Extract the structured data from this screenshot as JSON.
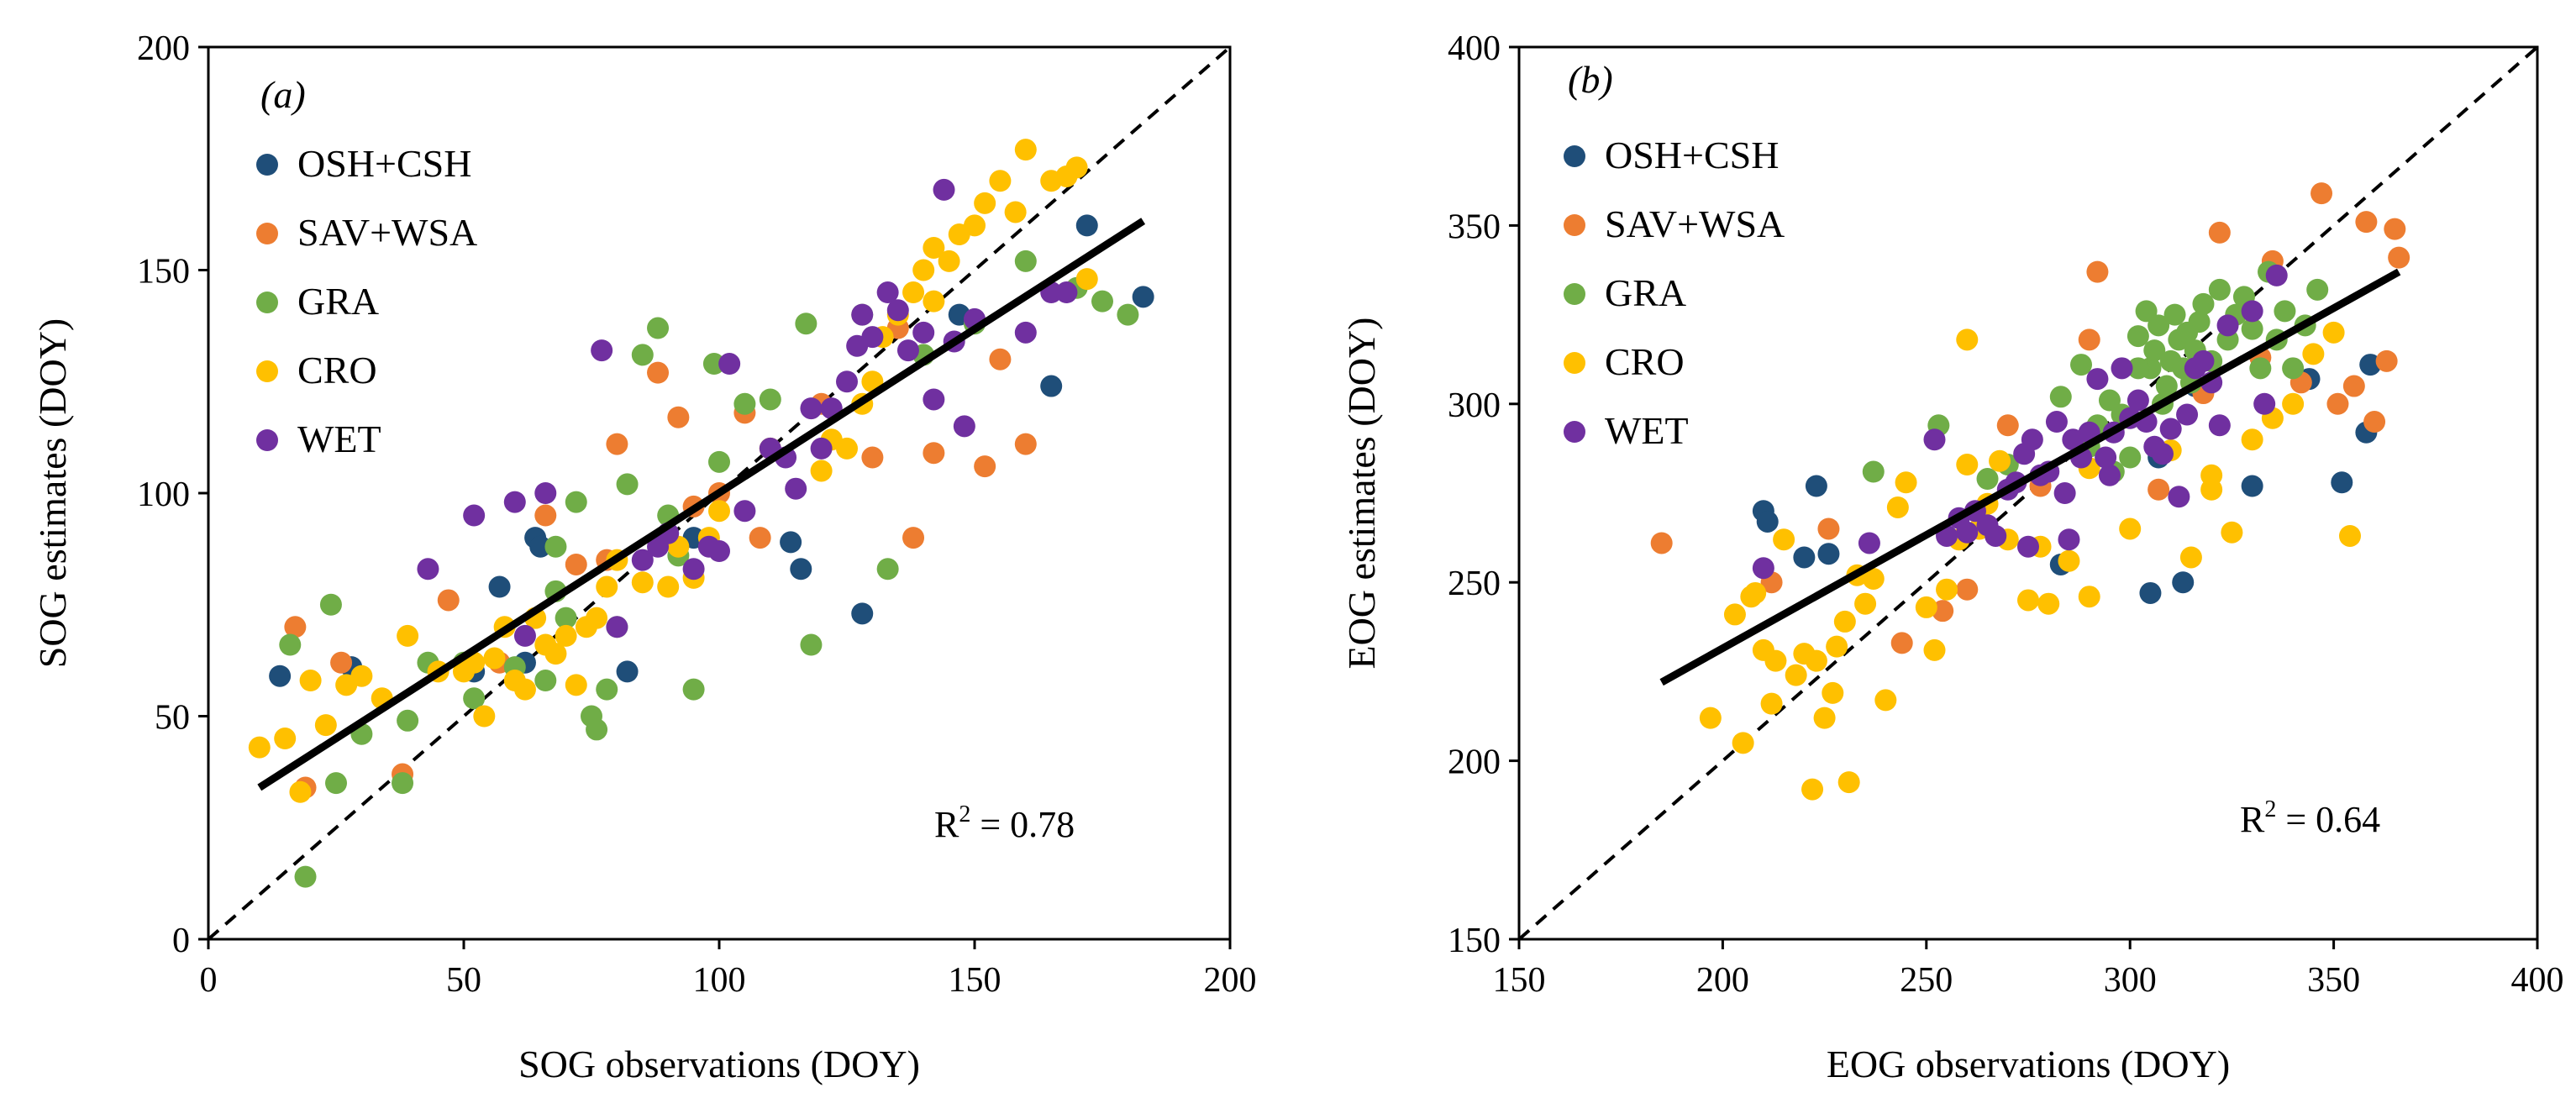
{
  "colors": {
    "OSH+CSH": "#1f4e79",
    "SAV+WSA": "#ed7d31",
    "GRA": "#70ad47",
    "CRO": "#ffc000",
    "WET": "#7030a0"
  },
  "chart_data": [
    {
      "type": "scatter",
      "panel_label": "(a)",
      "paren_open": "(",
      "panel_letter": "a",
      "paren_close": ")",
      "xlabel": "SOG observations (DOY)",
      "ylabel": "SOG estimates (DOY)",
      "xlim": [
        0,
        200
      ],
      "ylim": [
        0,
        200
      ],
      "xticks": [
        "0",
        "50",
        "100",
        "150",
        "200"
      ],
      "yticks": [
        "0",
        "50",
        "100",
        "150",
        "200"
      ],
      "r2_label": "R",
      "r2_exp": "2",
      "r2_value": " = 0.78",
      "fit_line": {
        "x": [
          10,
          183
        ],
        "y": [
          34,
          161
        ]
      },
      "legend_entries": [
        "OSH+CSH",
        "SAV+WSA",
        "GRA",
        "CRO",
        "WET"
      ],
      "series": [
        {
          "name": "OSH+CSH",
          "x": [
            14,
            28,
            57,
            64,
            65,
            82,
            95,
            114,
            116,
            128,
            165,
            172,
            183,
            147,
            62,
            52
          ],
          "y": [
            59,
            61,
            79,
            90,
            88,
            60,
            90,
            89,
            83,
            73,
            124,
            160,
            144,
            140,
            62,
            60
          ]
        },
        {
          "name": "SAV+WSA",
          "x": [
            17,
            19,
            26,
            38,
            47,
            57,
            72,
            80,
            88,
            92,
            95,
            100,
            105,
            108,
            130,
            138,
            142,
            152,
            155,
            160,
            135,
            120,
            66,
            78
          ],
          "y": [
            70,
            34,
            62,
            37,
            76,
            62,
            84,
            111,
            127,
            117,
            97,
            100,
            118,
            90,
            108,
            90,
            109,
            106,
            130,
            111,
            137,
            120,
            95,
            85
          ]
        },
        {
          "name": "GRA",
          "x": [
            16,
            19,
            24,
            25,
            30,
            38,
            39,
            43,
            50,
            52,
            60,
            66,
            68,
            70,
            72,
            75,
            76,
            78,
            82,
            85,
            88,
            90,
            95,
            99,
            100,
            105,
            110,
            117,
            118,
            128,
            133,
            140,
            150,
            160,
            170,
            175,
            180,
            68,
            92,
            80
          ],
          "y": [
            66,
            14,
            75,
            35,
            46,
            35,
            49,
            62,
            62,
            54,
            61,
            58,
            88,
            72,
            98,
            50,
            47,
            56,
            102,
            131,
            137,
            95,
            56,
            129,
            107,
            120,
            121,
            138,
            66,
            140,
            83,
            131,
            138,
            152,
            146,
            143,
            140,
            78,
            86,
            70
          ]
        },
        {
          "name": "CRO",
          "x": [
            10,
            15,
            18,
            20,
            23,
            27,
            30,
            34,
            39,
            45,
            50,
            52,
            54,
            56,
            58,
            60,
            62,
            64,
            66,
            68,
            70,
            72,
            74,
            76,
            78,
            80,
            85,
            90,
            92,
            95,
            98,
            100,
            110,
            120,
            125,
            128,
            130,
            132,
            135,
            138,
            140,
            142,
            145,
            147,
            150,
            152,
            155,
            158,
            160,
            165,
            168,
            170,
            172,
            122,
            142
          ],
          "y": [
            43,
            45,
            33,
            58,
            48,
            57,
            59,
            54,
            68,
            60,
            60,
            62,
            50,
            63,
            70,
            58,
            56,
            72,
            66,
            64,
            68,
            57,
            70,
            72,
            79,
            85,
            80,
            79,
            88,
            81,
            90,
            96,
            110,
            105,
            110,
            120,
            125,
            135,
            140,
            145,
            150,
            155,
            152,
            158,
            160,
            165,
            170,
            163,
            177,
            170,
            171,
            173,
            148,
            112,
            143
          ]
        },
        {
          "name": "WET",
          "x": [
            43,
            52,
            60,
            62,
            66,
            77,
            80,
            85,
            88,
            90,
            95,
            98,
            100,
            102,
            105,
            110,
            115,
            120,
            122,
            125,
            127,
            128,
            130,
            133,
            135,
            137,
            140,
            142,
            144,
            146,
            148,
            150,
            160,
            165,
            168,
            113,
            118
          ],
          "y": [
            83,
            95,
            98,
            68,
            100,
            132,
            70,
            85,
            88,
            91,
            83,
            88,
            87,
            129,
            96,
            110,
            101,
            110,
            119,
            125,
            133,
            140,
            135,
            145,
            141,
            132,
            136,
            121,
            168,
            134,
            115,
            139,
            136,
            145,
            145,
            108,
            119
          ]
        }
      ]
    },
    {
      "type": "scatter",
      "panel_label": "(b)",
      "paren_open": "(",
      "panel_letter": "b",
      "paren_close": ")",
      "xlabel": "EOG observations (DOY)",
      "ylabel": "EOG estimates (DOY)",
      "xlim": [
        150,
        400
      ],
      "ylim": [
        150,
        400
      ],
      "xticks": [
        "150",
        "200",
        "250",
        "300",
        "350",
        "400"
      ],
      "yticks": [
        "150",
        "200",
        "250",
        "300",
        "350",
        "400"
      ],
      "r2_label": "R",
      "r2_exp": "2",
      "r2_value": " = 0.64",
      "fit_line": {
        "x": [
          185,
          366
        ],
        "y": [
          222,
          337
        ]
      },
      "legend_entries": [
        "OSH+CSH",
        "SAV+WSA",
        "GRA",
        "CRO",
        "WET"
      ],
      "series": [
        {
          "name": "OSH+CSH",
          "x": [
            210,
            211,
            220,
            223,
            226,
            283,
            305,
            307,
            313,
            316,
            330,
            344,
            352,
            358,
            359
          ],
          "y": [
            270,
            267,
            257,
            277,
            258,
            255,
            247,
            285,
            250,
            305,
            277,
            307,
            278,
            292,
            311
          ]
        },
        {
          "name": "SAV+WSA",
          "x": [
            185,
            212,
            226,
            244,
            254,
            260,
            278,
            292,
            307,
            322,
            332,
            342,
            347,
            351,
            355,
            358,
            360,
            363,
            366,
            365,
            335,
            318,
            270,
            290
          ],
          "y": [
            261,
            250,
            265,
            233,
            242,
            248,
            277,
            337,
            276,
            348,
            313,
            306,
            359,
            300,
            305,
            351,
            295,
            312,
            341,
            349,
            340,
            303,
            294,
            318
          ]
        },
        {
          "name": "GRA",
          "x": [
            237,
            253,
            265,
            270,
            283,
            288,
            292,
            295,
            298,
            300,
            302,
            304,
            305,
            306,
            307,
            308,
            309,
            310,
            311,
            312,
            313,
            314,
            315,
            316,
            317,
            318,
            320,
            322,
            324,
            326,
            328,
            330,
            332,
            334,
            336,
            338,
            340,
            343,
            346,
            296,
            302,
            290
          ],
          "y": [
            281,
            294,
            279,
            283,
            302,
            311,
            294,
            301,
            297,
            285,
            319,
            326,
            310,
            315,
            322,
            300,
            305,
            312,
            325,
            318,
            310,
            320,
            306,
            315,
            323,
            328,
            312,
            332,
            318,
            325,
            330,
            321,
            310,
            337,
            318,
            326,
            310,
            322,
            332,
            281,
            310,
            288
          ]
        },
        {
          "name": "CRO",
          "x": [
            197,
            203,
            205,
            207,
            208,
            210,
            212,
            213,
            215,
            218,
            220,
            222,
            223,
            225,
            227,
            228,
            230,
            231,
            233,
            235,
            237,
            240,
            243,
            245,
            250,
            252,
            255,
            258,
            260,
            263,
            265,
            268,
            270,
            275,
            278,
            280,
            285,
            290,
            300,
            310,
            315,
            320,
            325,
            330,
            335,
            340,
            345,
            350,
            354,
            320,
            290,
            260
          ],
          "y": [
            212,
            241,
            205,
            246,
            247,
            231,
            216,
            228,
            262,
            224,
            230,
            192,
            228,
            212,
            219,
            232,
            239,
            194,
            252,
            244,
            251,
            217,
            271,
            278,
            243,
            231,
            248,
            262,
            283,
            265,
            272,
            284,
            262,
            245,
            260,
            244,
            256,
            246,
            265,
            287,
            257,
            280,
            264,
            290,
            296,
            300,
            314,
            320,
            263,
            276,
            282,
            318
          ]
        },
        {
          "name": "WET",
          "x": [
            210,
            236,
            252,
            255,
            258,
            260,
            262,
            265,
            267,
            270,
            272,
            274,
            276,
            278,
            280,
            282,
            284,
            286,
            288,
            290,
            292,
            294,
            296,
            298,
            300,
            302,
            304,
            306,
            308,
            310,
            312,
            314,
            316,
            318,
            320,
            322,
            324,
            330,
            333,
            336,
            275,
            285,
            295
          ],
          "y": [
            254,
            261,
            290,
            263,
            268,
            264,
            270,
            266,
            263,
            276,
            278,
            286,
            290,
            280,
            281,
            295,
            275,
            290,
            285,
            292,
            307,
            285,
            292,
            310,
            296,
            301,
            295,
            288,
            286,
            293,
            274,
            297,
            310,
            312,
            306,
            294,
            322,
            326,
            300,
            336,
            260,
            262,
            280
          ]
        }
      ]
    }
  ]
}
